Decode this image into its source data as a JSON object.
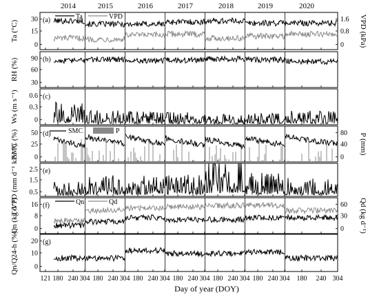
{
  "chart_data": {
    "type": "line",
    "xlabel": "Day of year (DOY)",
    "years": [
      "2014",
      "2015",
      "2016",
      "2017",
      "2018",
      "2019",
      "2020"
    ],
    "x_tick_labels": [
      "121",
      "180",
      "240",
      "304",
      "180",
      "240",
      "304",
      "180",
      "240",
      "304",
      "180",
      "240",
      "304",
      "180",
      "240",
      "304",
      "180",
      "240",
      "304",
      "180",
      "240",
      "304"
    ],
    "panels": [
      {
        "id": "a",
        "panel_label": "(a)",
        "ylabel_left": "Ta (°C)",
        "yticks_left": [
          "30",
          "15",
          "0"
        ],
        "ylim_left": [
          0,
          35
        ],
        "ylabel_right": "VPD (kPa)",
        "yticks_right": [
          "1.6",
          "0.8",
          "0"
        ],
        "ylim_right": [
          0,
          1.8
        ],
        "legend": [
          "Ta",
          "VPD"
        ],
        "series": [
          {
            "name": "Ta",
            "axis": "left",
            "color": "#000000",
            "levels": [
              27,
              24,
              24,
              26,
              27,
              25,
              25
            ]
          },
          {
            "name": "VPD",
            "axis": "right",
            "color": "#8a8a8a",
            "levels": [
              0.55,
              0.5,
              0.7,
              0.75,
              0.55,
              0.65,
              0.75
            ]
          }
        ]
      },
      {
        "id": "b",
        "panel_label": "(b)",
        "ylabel_left": "RH (%)",
        "yticks_left": [
          "90",
          "60",
          "30"
        ],
        "ylim_left": [
          20,
          100
        ],
        "series": [
          {
            "name": "RH",
            "axis": "left",
            "color": "#000000",
            "levels": [
              80,
              83,
              80,
              81,
              84,
              82,
              78
            ]
          }
        ]
      },
      {
        "id": "c",
        "panel_label": "(c)",
        "ylabel_left": "Ws (m s⁻¹)",
        "yticks_left": [
          "0.6",
          "0.3",
          "0"
        ],
        "ylim_left": [
          0,
          0.8
        ],
        "series": [
          {
            "name": "Ws",
            "axis": "left",
            "color": "#000000",
            "levels": [
              0.22,
              0.14,
              0.13,
              0.12,
              0.1,
              0.12,
              0.13
            ]
          }
        ]
      },
      {
        "id": "d",
        "panel_label": "(d)",
        "ylabel_left": "SMC (%)",
        "yticks_left": [
          "50",
          "25",
          "0"
        ],
        "ylim_left": [
          0,
          60
        ],
        "ylabel_right": "P (mm)",
        "yticks_right": [
          "80",
          "40",
          "0"
        ],
        "ylim_right": [
          0,
          100
        ],
        "legend": [
          "SMC",
          "P"
        ],
        "series": [
          {
            "name": "SMC",
            "axis": "left",
            "color": "#000000",
            "levels": [
              38,
              42,
              42,
              40,
              38,
              40,
              42
            ]
          },
          {
            "name": "P",
            "axis": "right",
            "color": "#8a8a8a",
            "levels": [
              20,
              22,
              20,
              22,
              22,
              20,
              22
            ]
          }
        ]
      },
      {
        "id": "e",
        "panel_label": "(e)",
        "ylabel_left": "T/VPD (mm d⁻¹ kPa⁻¹)",
        "yticks_left": [
          "2.5",
          "1.5",
          "0.5"
        ],
        "ylim_left": [
          0,
          3
        ],
        "series": [
          {
            "name": "T/VPD",
            "axis": "left",
            "color": "#000000",
            "levels": [
              0.55,
              0.8,
              0.8,
              0.85,
              1.6,
              0.9,
              0.7
            ]
          }
        ]
      },
      {
        "id": "f",
        "panel_label": "(f)",
        "ylabel_left": "Qn (kg d⁻¹)",
        "yticks_left": [
          "16",
          "8",
          "0"
        ],
        "ylim_left": [
          0,
          18
        ],
        "ylabel_right": "Qd (kg d⁻¹)",
        "yticks_right": [
          "60",
          "30",
          "0"
        ],
        "ylim_right": [
          0,
          70
        ],
        "legend": [
          "Qn",
          "Qd"
        ],
        "series": [
          {
            "name": "Qn",
            "axis": "left",
            "color": "#000000",
            "levels": [
              4,
              6,
              8,
              7,
              7,
              8,
              8
            ]
          },
          {
            "name": "Qd",
            "axis": "right",
            "color": "#8a8a8a",
            "levels": [
              25,
              45,
              50,
              52,
              55,
              55,
              45
            ]
          }
        ]
      },
      {
        "id": "g",
        "panel_label": "(g)",
        "ylabel_left": "Qn/Q24-h (%)",
        "yticks_left": [
          "20",
          "10",
          "0"
        ],
        "ylim_left": [
          0,
          25
        ],
        "series": [
          {
            "name": "Qn/Q24-h",
            "axis": "left",
            "color": "#000000",
            "levels": [
              9,
              9,
              14,
              12,
              12,
              13,
              9
            ]
          }
        ]
      }
    ]
  }
}
